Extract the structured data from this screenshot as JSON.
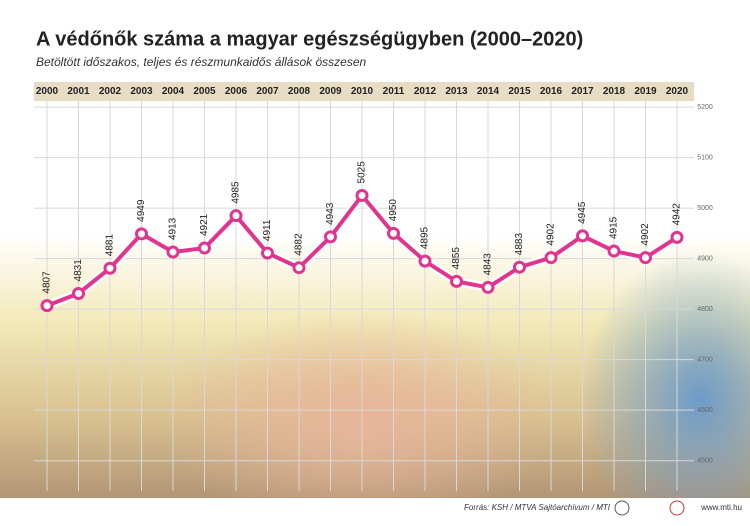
{
  "chart_data": {
    "type": "line",
    "title": "A védőnők száma a magyar egészségügyben (2000–2020)",
    "subtitle": "Betöltött időszakos, teljes és részmunkaidős állások összesen",
    "categories": [
      "2000",
      "2001",
      "2002",
      "2003",
      "2004",
      "2005",
      "2006",
      "2007",
      "2008",
      "2009",
      "2010",
      "2011",
      "2012",
      "2013",
      "2014",
      "2015",
      "2016",
      "2017",
      "2018",
      "2019",
      "2020"
    ],
    "values": [
      4807,
      4831,
      4881,
      4949,
      4913,
      4921,
      4985,
      4911,
      4882,
      4943,
      5025,
      4950,
      4895,
      4855,
      4843,
      4883,
      4902,
      4945,
      4915,
      4902,
      4942
    ],
    "color": "#e0348f",
    "ylim": [
      4440,
      5214
    ],
    "yticks": [
      4500,
      4600,
      4700,
      4800,
      4900,
      5000,
      5100,
      5200
    ],
    "grid": true,
    "source": "Forrás: KSH / MTVA Sajtóarchívum / MTI",
    "website": "www.mti.hu"
  }
}
